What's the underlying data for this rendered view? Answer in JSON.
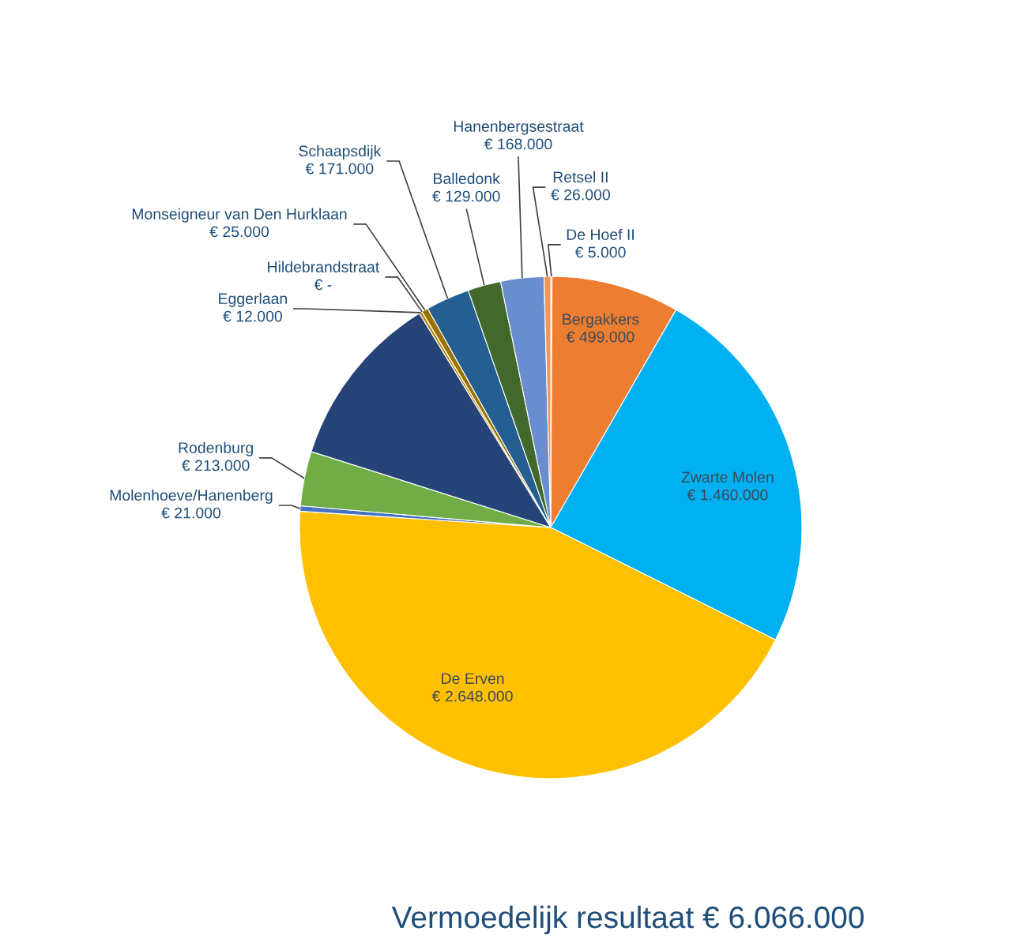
{
  "chart_data": {
    "type": "pie",
    "title": "Vermoedelijk resultaat € 6.066.000",
    "categories": [
      "De Hoef II",
      "Bergakkers",
      "Zwarte Molen",
      "De Erven",
      "Molenhoeve/Hanenberg",
      "Rodenburg",
      null,
      "Eggerlaan",
      "Hildebrandstraat",
      "Monseigneur van Den Hurklaan",
      "Schaapsdijk",
      "Balledonk",
      "Hanenbergsestraat",
      "Retsel II"
    ],
    "values": [
      5000,
      499000,
      1460000,
      2648000,
      21000,
      213000,
      689000,
      12000,
      0,
      25000,
      171000,
      129000,
      168000,
      26000
    ],
    "colors": [
      "#e9a070",
      "#ed7d31",
      "#00b0f0",
      "#ffc000",
      "#4472c4",
      "#70ad47",
      "#264478",
      "#b8860b",
      "#7f6000",
      "#997300",
      "#255e91",
      "#43682b",
      "#698ed0",
      "#f1975a"
    ],
    "value_labels": [
      "€ 5.000",
      "€ 499.000",
      "€ 1.460.000",
      "€ 2.648.000",
      "€ 21.000",
      "€ 213.000",
      null,
      "€ 12.000",
      "€ -",
      "€ 25.000",
      "€ 171.000",
      "€ 129.000",
      "€ 168.000",
      "€ 26.000"
    ]
  }
}
